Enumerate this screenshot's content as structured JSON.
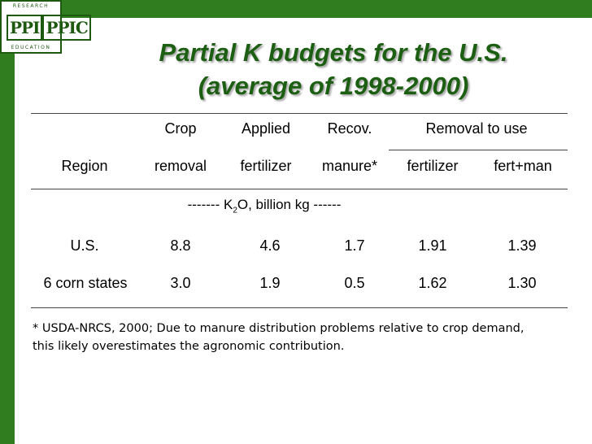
{
  "logo": {
    "top_text": "RESEARCH",
    "mark": [
      "PPI",
      "PPIC"
    ],
    "bottom_text": "EDUCATION"
  },
  "title": {
    "line1": "Partial K budgets for the U.S.",
    "line2": "(average of 1998-2000)"
  },
  "table": {
    "header_row1": {
      "crop": "Crop",
      "applied": "Applied",
      "recov": "Recov.",
      "removal_to_use": "Removal to use"
    },
    "header_row2": {
      "region": "Region",
      "crop": "removal",
      "applied": "fertilizer",
      "recov": "manure*",
      "fertilizer": "fertilizer",
      "fert_man": "fert+man"
    },
    "units": {
      "prefix": "------- K",
      "subscript": "2",
      "suffix": "O, billion kg ------"
    },
    "rows": [
      {
        "region": "U.S.",
        "crop_removal": "8.8",
        "applied": "4.6",
        "recov": "1.7",
        "fertilizer": "1.91",
        "fert_man": "1.39"
      },
      {
        "region": "6 corn states",
        "crop_removal": "3.0",
        "applied": "1.9",
        "recov": "0.5",
        "fertilizer": "1.62",
        "fert_man": "1.30"
      }
    ]
  },
  "footnote": {
    "line1": "* USDA-NRCS, 2000; Due to manure distribution problems relative to crop demand,",
    "line2": "this likely overestimates the agronomic contribution."
  },
  "colors": {
    "accent": "#2f7d1f",
    "title": "#1c5f12"
  }
}
